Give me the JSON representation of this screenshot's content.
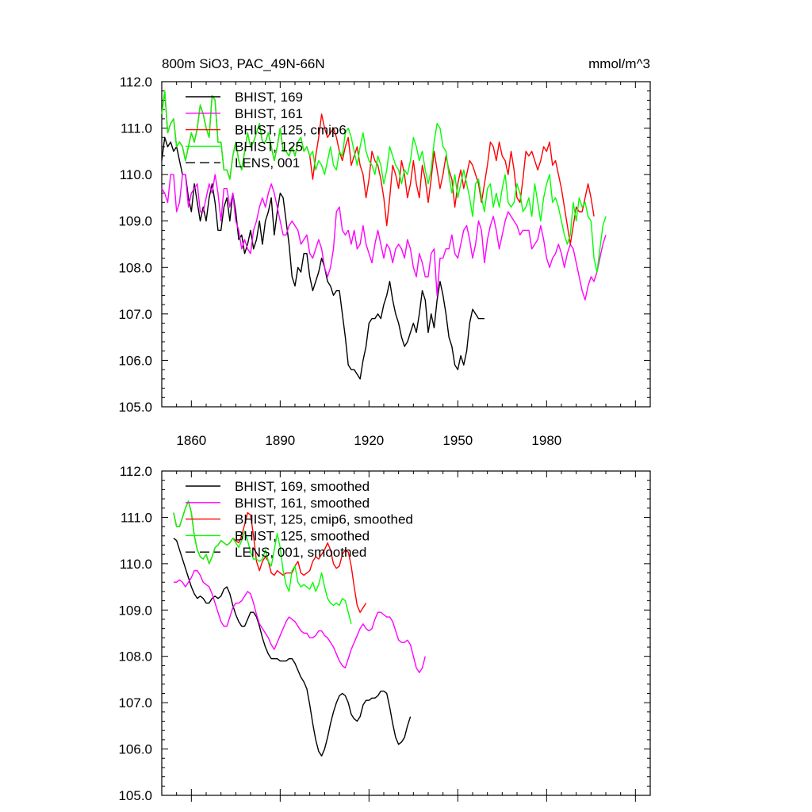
{
  "header": {
    "title": "800m SiO3, PAC_49N-66N",
    "units": "mmol/m^3"
  },
  "colors": {
    "BHIST_169": "#000000",
    "BHIST_161": "#ff00ff",
    "BHIST_125_cmip6": "#ff0000",
    "BHIST_125": "#00ff00",
    "LENS_001": "#000000"
  },
  "chart_data": [
    {
      "type": "line",
      "title": "800m SiO3, PAC_49N-66N",
      "units": "mmol/m^3",
      "xlim": [
        1850,
        2015
      ],
      "ylim": [
        105.0,
        112.0
      ],
      "yticks": [
        "105.0",
        "106.0",
        "107.0",
        "108.0",
        "109.0",
        "110.0",
        "111.0",
        "112.0"
      ],
      "xticks": [
        "1860",
        "1890",
        "1920",
        "1950",
        "1980"
      ],
      "legend": [
        {
          "label": "BHIST, 169",
          "color": "#000000",
          "dash": false
        },
        {
          "label": "BHIST, 161",
          "color": "#ff00ff",
          "dash": false
        },
        {
          "label": "BHIST, 125, cmip6",
          "color": "#ff0000",
          "dash": false
        },
        {
          "label": "BHIST, 125",
          "color": "#00ff00",
          "dash": false
        },
        {
          "label": "LENS, 001",
          "color": "#000000",
          "dash": true
        }
      ],
      "series": [
        {
          "name": "BHIST, 169",
          "color": "#000000",
          "x_start": 1850,
          "values": [
            110.3,
            110.8,
            110.6,
            110.7,
            110.5,
            110.6,
            110.3,
            110.0,
            110.0,
            109.5,
            109.2,
            109.8,
            109.4,
            109.0,
            109.3,
            109.0,
            109.5,
            109.8,
            109.4,
            108.8,
            108.8,
            109.3,
            109.5,
            109.0,
            109.6,
            109.2,
            108.6,
            108.7,
            108.3,
            108.5,
            108.8,
            108.4,
            108.6,
            109.0,
            108.5,
            109.0,
            109.2,
            109.5,
            108.7,
            109.2,
            109.6,
            109.5,
            109.0,
            108.5,
            107.8,
            107.6,
            108.0,
            107.9,
            108.3,
            108.3,
            107.8,
            107.5,
            107.7,
            107.9,
            108.2,
            108.0,
            107.7,
            107.6,
            107.4,
            107.5,
            107.5,
            107.0,
            106.5,
            105.9,
            105.8,
            105.8,
            105.7,
            105.6,
            106.0,
            106.3,
            106.8,
            106.9,
            106.9,
            107.0,
            106.9,
            107.2,
            107.4,
            107.7,
            107.3,
            107.0,
            106.8,
            106.5,
            106.3,
            106.4,
            106.6,
            106.8,
            106.6,
            107.0,
            107.5,
            107.3,
            106.6,
            107.0,
            106.7,
            107.3,
            107.7,
            107.4,
            107.0,
            106.5,
            106.3,
            105.9,
            105.8,
            106.1,
            105.9,
            106.2,
            106.8,
            107.1,
            107.0,
            106.9,
            106.9,
            106.9
          ]
        },
        {
          "name": "BHIST, 161",
          "color": "#ff00ff",
          "x_start": 1850,
          "values": [
            109.7,
            109.6,
            109.4,
            110.0,
            110.0,
            109.2,
            109.4,
            110.0,
            110.0,
            109.3,
            109.6,
            109.7,
            109.8,
            109.2,
            109.2,
            109.5,
            109.8,
            109.6,
            110.0,
            109.6,
            109.0,
            109.7,
            109.7,
            109.3,
            109.6,
            109.0,
            108.8,
            108.4,
            108.6,
            108.4,
            108.3,
            108.8,
            109.0,
            109.3,
            109.5,
            109.3,
            109.6,
            109.8,
            109.6,
            109.3,
            109.0,
            108.7,
            108.7,
            108.9,
            109.0,
            108.9,
            108.8,
            108.5,
            108.6,
            108.7,
            108.3,
            108.2,
            108.4,
            108.6,
            108.4,
            108.0,
            107.8,
            108.0,
            108.4,
            109.2,
            109.3,
            108.8,
            108.7,
            108.8,
            108.5,
            108.8,
            108.4,
            108.5,
            108.9,
            108.5,
            108.3,
            108.1,
            108.5,
            108.8,
            108.5,
            108.2,
            108.5,
            108.4,
            108.1,
            108.4,
            108.5,
            108.4,
            108.2,
            108.6,
            108.4,
            108.0,
            107.8,
            108.3,
            108.1,
            107.8,
            107.8,
            108.3,
            108.4,
            107.4,
            108.2,
            108.2,
            108.4,
            108.4,
            108.7,
            108.3,
            108.2,
            108.5,
            108.8,
            108.9,
            108.6,
            108.2,
            108.5,
            109.0,
            108.8,
            108.1,
            108.6,
            108.9,
            109.1,
            108.8,
            108.4,
            108.7,
            109.0,
            109.2,
            109.1,
            109.0,
            108.9,
            108.7,
            108.8,
            108.8,
            108.8,
            108.4,
            108.5,
            108.6,
            108.9,
            108.6,
            108.2,
            108.0,
            108.2,
            108.3,
            108.5,
            108.3,
            108.0,
            108.3,
            108.5,
            108.4,
            108.1,
            107.8,
            107.5,
            107.3,
            107.6,
            107.8,
            107.7,
            107.9,
            108.2,
            108.5,
            108.7
          ]
        },
        {
          "name": "BHIST, 125, cmip6",
          "color": "#ff0000",
          "x_start": 1850,
          "values": [
            111.3,
            111.8,
            110.9,
            111.1,
            111.2,
            110.6,
            110.7,
            110.6,
            110.3,
            110.6,
            110.9,
            110.7,
            111.0,
            111.5,
            111.3,
            111.0,
            110.8,
            111.7,
            111.6,
            110.7,
            110.7,
            110.1,
            110.1,
            109.9,
            110.4,
            110.7,
            110.3,
            110.1,
            110.5,
            110.9,
            110.6,
            110.7,
            110.9,
            111.1,
            110.7,
            110.7,
            110.9,
            110.6,
            110.3,
            110.6,
            111.0,
            110.5,
            110.5,
            110.4,
            110.6,
            110.4,
            110.7,
            110.8,
            110.5,
            110.6,
            110.4,
            109.9,
            110.4,
            110.8,
            111.3,
            111.0,
            110.8,
            110.9,
            111.0,
            110.8,
            110.5,
            110.3,
            110.6,
            110.8,
            110.2,
            110.4,
            110.6,
            110.2,
            110.0,
            109.5,
            109.9,
            110.5,
            110.3,
            110.2,
            109.9,
            109.5,
            108.9,
            109.5,
            110.2,
            110.0,
            109.7,
            110.3,
            110.0,
            109.5,
            109.8,
            110.3,
            109.8,
            109.5,
            110.2,
            109.9,
            109.4,
            109.9,
            110.5,
            110.1,
            109.7,
            110.0,
            110.4,
            110.1,
            109.9,
            109.3,
            109.8,
            110.1,
            109.7,
            110.0,
            110.3,
            110.2,
            110.0,
            109.8,
            109.4,
            109.8,
            110.2,
            110.7,
            110.6,
            110.3,
            110.7,
            110.4,
            110.3,
            110.0,
            110.5,
            110.1,
            109.5,
            109.4,
            109.9,
            110.5,
            110.4,
            110.5,
            110.3,
            110.1,
            110.3,
            110.6,
            110.5,
            110.7,
            110.2,
            110.3,
            110.0,
            109.7,
            109.3,
            108.9,
            108.5,
            108.9,
            109.3,
            109.2,
            109.2,
            109.5,
            109.8,
            109.5,
            109.1
          ]
        },
        {
          "name": "BHIST, 125",
          "color": "#00ff00",
          "x_start": 1850,
          "values": [
            111.3,
            111.8,
            110.9,
            111.1,
            111.2,
            110.6,
            110.7,
            110.6,
            110.3,
            110.6,
            110.9,
            110.7,
            111.0,
            111.5,
            111.3,
            111.0,
            110.8,
            111.7,
            111.6,
            110.7,
            110.7,
            110.1,
            110.1,
            109.9,
            110.4,
            110.7,
            110.3,
            110.1,
            110.5,
            110.9,
            110.6,
            110.7,
            110.9,
            111.1,
            110.7,
            110.7,
            110.9,
            110.6,
            110.3,
            110.6,
            111.0,
            110.5,
            110.5,
            110.4,
            110.6,
            110.4,
            110.7,
            110.8,
            110.5,
            110.6,
            110.4,
            110.5,
            110.1,
            110.3,
            110.2,
            110.0,
            110.3,
            110.6,
            110.2,
            110.1,
            110.5,
            110.4,
            110.9,
            111.0,
            110.8,
            110.5,
            110.2,
            110.6,
            110.9,
            110.5,
            110.3,
            110.2,
            110.0,
            110.4,
            110.2,
            109.8,
            110.1,
            110.6,
            110.4,
            110.2,
            110.1,
            109.8,
            110.1,
            110.0,
            110.3,
            110.8,
            110.6,
            110.3,
            110.5,
            110.1,
            109.8,
            110.1,
            110.7,
            111.1,
            111.0,
            110.6,
            110.5,
            110.0,
            109.6,
            110.0,
            109.5,
            109.8,
            110.1,
            109.8,
            109.5,
            109.1,
            109.8,
            109.9,
            109.5,
            109.2,
            109.7,
            109.8,
            109.3,
            109.6,
            109.3,
            109.7,
            110.0,
            109.4,
            109.3,
            109.4,
            109.8,
            109.6,
            109.2,
            109.3,
            109.5,
            109.1,
            109.8,
            109.4,
            109.0,
            109.5,
            109.8,
            110.0,
            109.4,
            109.5,
            109.3,
            109.0,
            108.7,
            108.5,
            108.7,
            109.4,
            109.0,
            109.5,
            109.3,
            109.4,
            109.1,
            109.0,
            108.2,
            107.9,
            108.4,
            108.9,
            109.1
          ]
        }
      ]
    },
    {
      "type": "line",
      "title": "",
      "xlim": [
        1850,
        2015
      ],
      "ylim": [
        105.0,
        112.0
      ],
      "yticks": [
        "105.0",
        "106.0",
        "107.0",
        "108.0",
        "109.0",
        "110.0",
        "111.0",
        "112.0"
      ],
      "legend": [
        {
          "label": "BHIST, 169, smoothed",
          "color": "#000000",
          "dash": false
        },
        {
          "label": "BHIST, 161, smoothed",
          "color": "#ff00ff",
          "dash": false
        },
        {
          "label": "BHIST, 125, cmip6, smoothed",
          "color": "#ff0000",
          "dash": false
        },
        {
          "label": "BHIST, 125, smoothed",
          "color": "#00ff00",
          "dash": false
        },
        {
          "label": "LENS, 001, smoothed",
          "color": "#000000",
          "dash": true
        }
      ],
      "series": [
        {
          "name": "BHIST, 169, smoothed",
          "color": "#000000",
          "x_start": 1854,
          "values": [
            110.55,
            110.5,
            110.3,
            110.1,
            109.9,
            109.7,
            109.5,
            109.35,
            109.25,
            109.3,
            109.25,
            109.15,
            109.15,
            109.25,
            109.3,
            109.25,
            109.3,
            109.45,
            109.5,
            109.35,
            109.1,
            108.9,
            108.75,
            108.65,
            108.65,
            108.8,
            108.95,
            108.95,
            108.85,
            108.65,
            108.4,
            108.2,
            108.05,
            107.95,
            107.95,
            107.95,
            107.9,
            107.9,
            107.9,
            107.95,
            107.95,
            107.85,
            107.7,
            107.55,
            107.45,
            107.3,
            106.95,
            106.55,
            106.2,
            105.95,
            105.85,
            106.0,
            106.25,
            106.55,
            106.8,
            107.0,
            107.15,
            107.2,
            107.15,
            107.0,
            106.75,
            106.65,
            106.6,
            106.7,
            106.95,
            107.05,
            107.05,
            107.1,
            107.1,
            107.15,
            107.25,
            107.25,
            107.2,
            106.9,
            106.55,
            106.25,
            106.1,
            106.15,
            106.25,
            106.5,
            106.7
          ]
        },
        {
          "name": "BHIST, 161, smoothed",
          "color": "#ff00ff",
          "x_start": 1854,
          "values": [
            109.6,
            109.6,
            109.65,
            109.6,
            109.5,
            109.6,
            109.7,
            109.85,
            109.85,
            109.75,
            109.6,
            109.55,
            109.5,
            109.35,
            109.15,
            108.95,
            108.75,
            108.65,
            108.65,
            108.85,
            109.05,
            109.15,
            109.15,
            109.2,
            109.3,
            109.4,
            109.35,
            109.15,
            108.9,
            108.7,
            108.6,
            108.5,
            108.4,
            108.25,
            108.15,
            108.3,
            108.45,
            108.6,
            108.75,
            108.85,
            108.8,
            108.75,
            108.65,
            108.55,
            108.5,
            108.5,
            108.4,
            108.4,
            108.45,
            108.55,
            108.55,
            108.45,
            108.4,
            108.3,
            108.2,
            108.05,
            107.9,
            107.8,
            107.75,
            107.95,
            108.15,
            108.3,
            108.45,
            108.6,
            108.7,
            108.6,
            108.55,
            108.6,
            108.8,
            108.95,
            108.95,
            108.9,
            108.85,
            108.85,
            108.75,
            108.55,
            108.35,
            108.3,
            108.3,
            108.35,
            108.25,
            108.0,
            107.75,
            107.65,
            107.75,
            108.0
          ]
        },
        {
          "name": "BHIST, 125, cmip6, smoothed",
          "color": "#ff0000",
          "x_start": 1854,
          "values": [
            111.1,
            110.8,
            110.8,
            111.0,
            111.2,
            111.35,
            111.1,
            110.6,
            110.3,
            110.15,
            110.1,
            110.2,
            110.0,
            110.15,
            110.35,
            110.4,
            110.5,
            110.45,
            110.4,
            110.45,
            110.55,
            110.5,
            110.45,
            110.6,
            110.85,
            111.1,
            111.05,
            110.6,
            110.05,
            109.85,
            110.05,
            110.15,
            110.05,
            109.8,
            109.75,
            109.85,
            109.8,
            109.75,
            109.8,
            109.8,
            109.8,
            109.95,
            110.05,
            109.8,
            109.75,
            109.8,
            109.85,
            110.05,
            110.15,
            110.1,
            110.2,
            110.3,
            110.45,
            110.3,
            110.0,
            109.9,
            109.95,
            110.2,
            110.3,
            110.25,
            109.95,
            109.5,
            109.1,
            108.95,
            109.05,
            109.15
          ]
        },
        {
          "name": "BHIST, 125, smoothed",
          "color": "#00ff00",
          "x_start": 1854,
          "values": [
            111.1,
            110.8,
            110.8,
            111.0,
            111.2,
            111.35,
            111.1,
            110.6,
            110.3,
            110.15,
            110.1,
            110.2,
            110.0,
            110.15,
            110.35,
            110.4,
            110.5,
            110.45,
            110.4,
            110.45,
            110.55,
            110.45,
            110.35,
            110.5,
            110.7,
            110.5,
            110.25,
            110.1,
            110.1,
            110.05,
            110.1,
            110.3,
            110.05,
            109.95,
            110.3,
            110.65,
            110.35,
            109.85,
            109.55,
            109.4,
            109.85,
            109.95,
            109.6,
            109.5,
            109.55,
            109.5,
            109.45,
            109.6,
            109.4,
            109.55,
            109.8,
            109.5,
            109.25,
            109.15,
            109.1,
            109.15,
            109.1,
            109.25,
            109.2,
            108.95,
            108.7
          ]
        }
      ]
    }
  ]
}
